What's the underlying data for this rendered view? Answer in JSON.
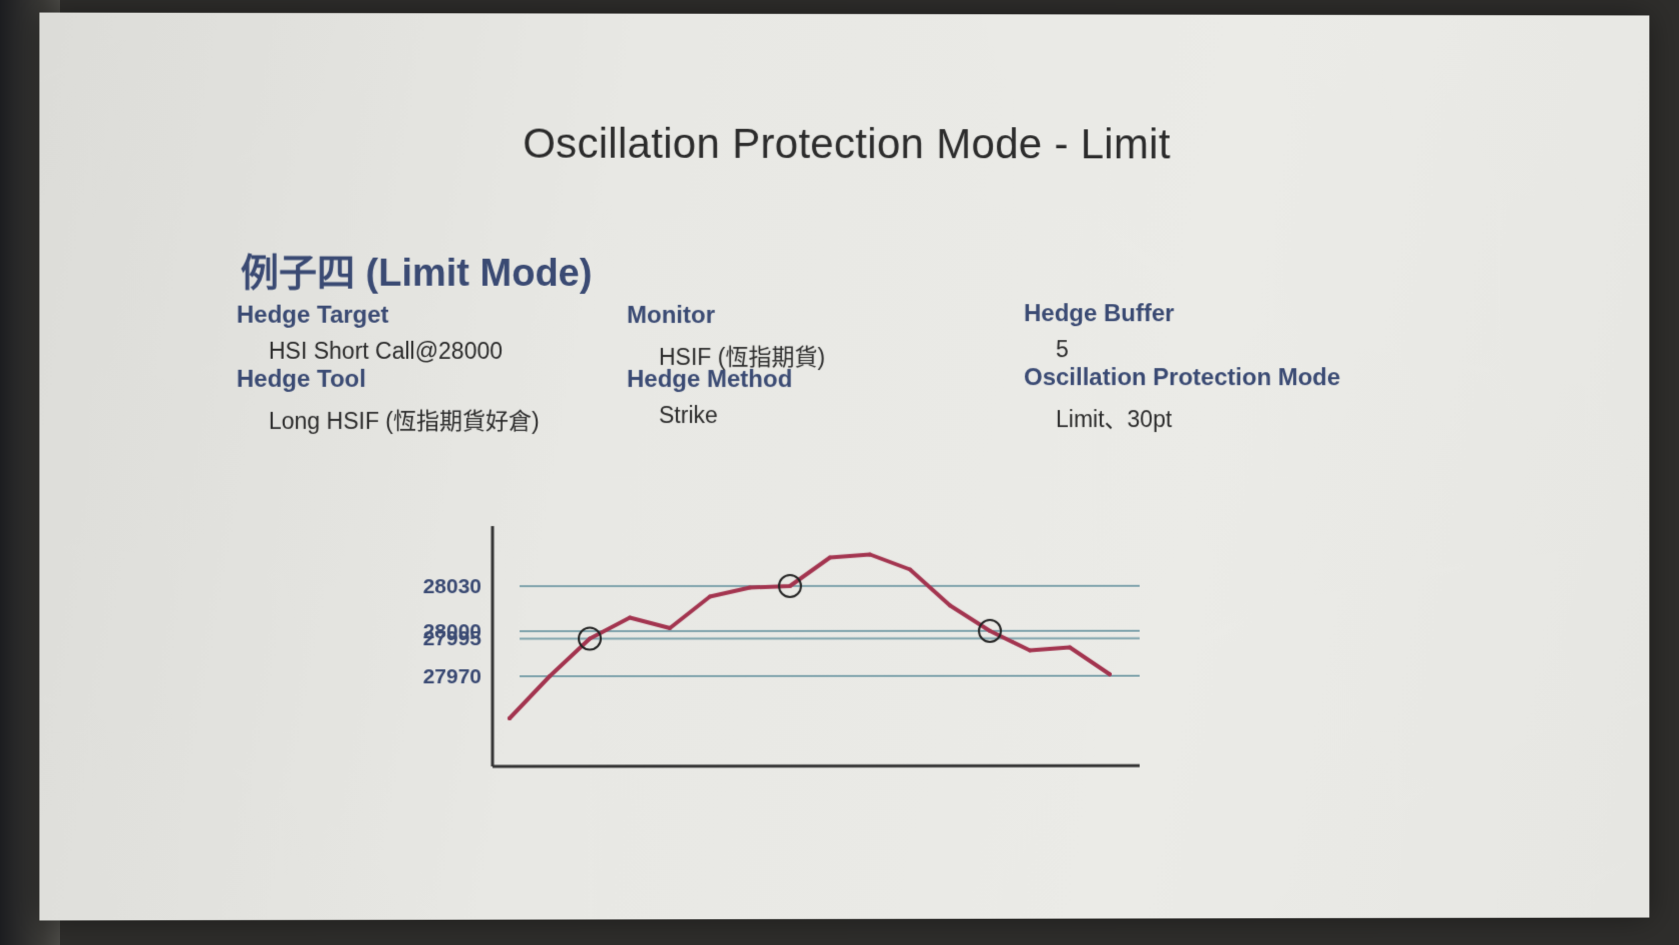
{
  "slide": {
    "title": "Oscillation Protection Mode - Limit",
    "subtitle": "例子四 (Limit Mode)",
    "fields": [
      {
        "label": "Hedge Target",
        "value": "HSI Short Call@28000"
      },
      {
        "label": "Hedge Tool",
        "value": "Long HSIF (恆指期貨好倉)"
      },
      {
        "label": "Monitor",
        "value": "HSIF (恆指期貨)"
      },
      {
        "label": "Hedge Method",
        "value": "Strike"
      },
      {
        "label": "Hedge Buffer",
        "value": "5"
      },
      {
        "label": "Oscillation Protection Mode",
        "value": "Limit、30pt"
      }
    ]
  },
  "colors": {
    "price_line": "#a3344f",
    "level_lines": "#7fa3ac",
    "axis": "#333333",
    "label_text": "#3a4a73"
  },
  "chart_data": {
    "type": "line",
    "levels": [
      28030,
      28000,
      27995,
      27970
    ],
    "tick_labels": [
      "28030",
      "28000",
      "27995",
      "27970"
    ],
    "series": [
      {
        "values": [
          27942,
          27970,
          27995,
          28009,
          28002,
          28023,
          28029,
          28030,
          28049,
          28051,
          28041,
          28017,
          28000,
          27987,
          27989,
          27971
        ]
      }
    ],
    "markers": [
      2,
      7,
      12
    ],
    "ylim": [
      27910,
      28070
    ],
    "grid": false
  }
}
